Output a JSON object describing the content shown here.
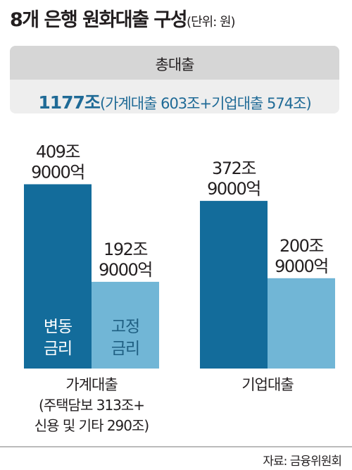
{
  "title": "8개 은행 원화대출 구성",
  "unit": "(단위: 원)",
  "summary": {
    "label": "총대출",
    "total": "1177조",
    "breakdown": "(가계대출 603조+기업대출 574조)"
  },
  "source": "자료: 금융위원회",
  "colors": {
    "dark": "#136c9b",
    "light": "#71b6d6"
  },
  "chart_data": {
    "type": "bar",
    "categories": [
      "가계대출",
      "기업대출"
    ],
    "category_notes": [
      "(주택담보 313조+",
      "신용 및 기타 290조)"
    ],
    "series": [
      {
        "values": [
          409.9,
          372.9
        ],
        "labels": [
          [
            "409조",
            "9000억"
          ],
          [
            "372조",
            "9000억"
          ]
        ],
        "inner_label": [
          "변동",
          "금리"
        ]
      },
      {
        "values": [
          192.9,
          200.9
        ],
        "labels": [
          [
            "192조",
            "9000억"
          ],
          [
            "200조",
            "9000억"
          ]
        ],
        "inner_label": [
          "고정",
          "금리"
        ]
      }
    ]
  }
}
